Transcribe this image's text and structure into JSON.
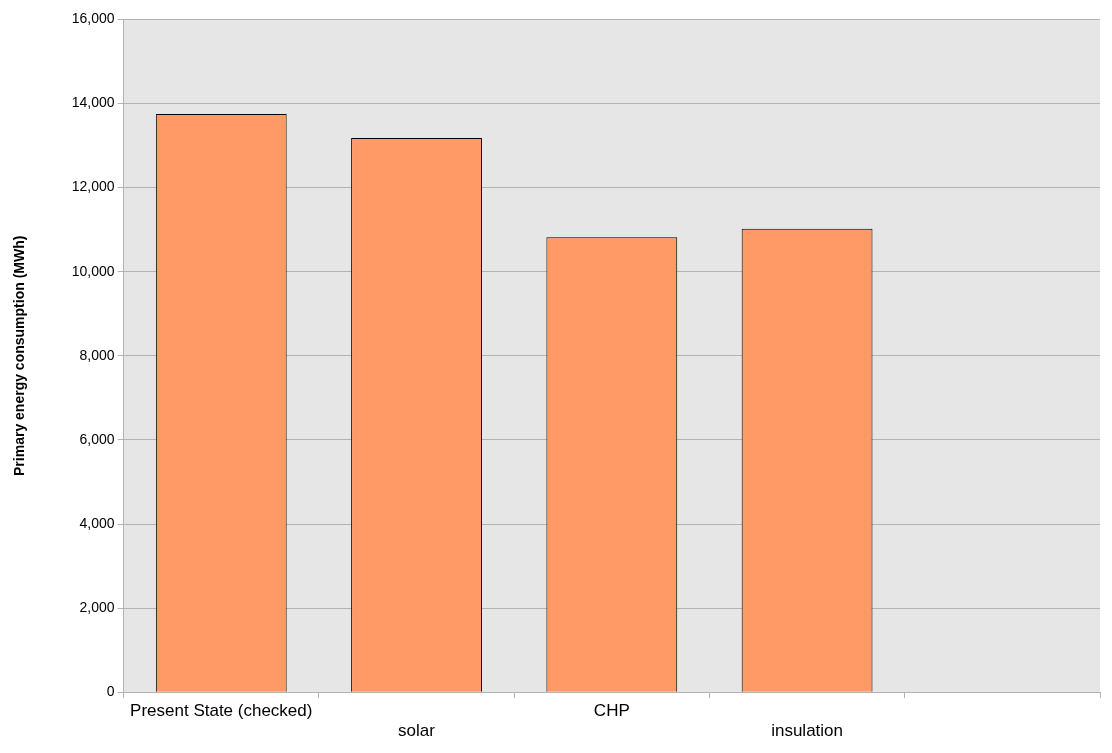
{
  "chart_data": {
    "type": "bar",
    "ylabel": "Primary energy consumption (MWh)",
    "categories": [
      "Present State (checked)",
      "solar",
      "CHP",
      "insulation",
      null
    ],
    "values": [
      13750,
      13180,
      10820,
      11020,
      null
    ],
    "color": "#ff9966",
    "ylim": [
      0,
      16000
    ],
    "yticks": [
      {
        "value": 0,
        "label": "0"
      },
      {
        "value": 2000,
        "label": "2,000"
      },
      {
        "value": 4000,
        "label": "4,000"
      },
      {
        "value": 6000,
        "label": "6,000"
      },
      {
        "value": 8000,
        "label": "8,000"
      },
      {
        "value": 10000,
        "label": "10,000"
      },
      {
        "value": 12000,
        "label": "12,000"
      },
      {
        "value": 14000,
        "label": "14,000"
      },
      {
        "value": 16000,
        "label": "16,000"
      }
    ],
    "grid": "y"
  }
}
